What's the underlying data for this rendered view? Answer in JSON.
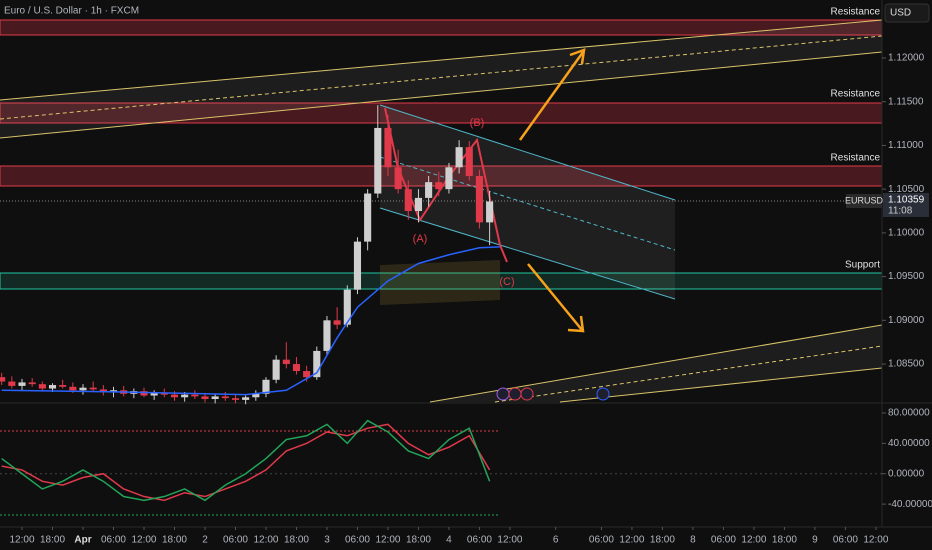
{
  "chart_data": [
    {
      "type": "candlestick",
      "title": "Euro / U.S. Dollar · 1h · FXCM",
      "currency": "USD",
      "symbol": "EURUSD",
      "countdown": "11:08",
      "annotations": [
        "Resistance",
        "Resistance",
        "Resistance",
        "Support",
        "(A)",
        "(B)",
        "(C)"
      ],
      "up_color": "#cfcfcf",
      "down_color": "#e0394a",
      "x": [
        -4,
        -2,
        0,
        2,
        4,
        6,
        8,
        10,
        12,
        14,
        16,
        18,
        20,
        22,
        24,
        26,
        28,
        30,
        32,
        34,
        36,
        38,
        40,
        42,
        44,
        46,
        48,
        50,
        52,
        54,
        56,
        58,
        60,
        62,
        64,
        66,
        68,
        70,
        72,
        74,
        76,
        78,
        80,
        82,
        84,
        86,
        88,
        90,
        92
      ],
      "open": [
        1.0835,
        1.083,
        1.0825,
        1.0829,
        1.0827,
        1.0822,
        1.0826,
        1.0824,
        1.082,
        1.0823,
        1.0821,
        1.0818,
        1.082,
        1.0816,
        1.0819,
        1.0814,
        1.0817,
        1.0815,
        1.0812,
        1.0815,
        1.0813,
        1.081,
        1.0813,
        1.0811,
        1.0809,
        1.0812,
        1.0816,
        1.0832,
        1.0855,
        1.085,
        1.0842,
        1.0835,
        1.0865,
        1.09,
        1.0895,
        1.0935,
        1.099,
        1.1045,
        1.112,
        1.1075,
        1.105,
        1.1025,
        1.104,
        1.1058,
        1.105,
        1.1075,
        1.1098,
        1.1065,
        1.1012
      ],
      "high": [
        1.084,
        1.0836,
        1.0833,
        1.0834,
        1.083,
        1.0828,
        1.0832,
        1.0829,
        1.0827,
        1.083,
        1.0826,
        1.0824,
        1.0825,
        1.0822,
        1.0823,
        1.082,
        1.0822,
        1.0819,
        1.0818,
        1.082,
        1.0817,
        1.0816,
        1.0818,
        1.0815,
        1.0814,
        1.082,
        1.0835,
        1.086,
        1.0875,
        1.0858,
        1.0848,
        1.087,
        1.0905,
        1.0915,
        1.094,
        1.0995,
        1.105,
        1.1146,
        1.1135,
        1.1095,
        1.106,
        1.105,
        1.1065,
        1.107,
        1.108,
        1.1106,
        1.1105,
        1.1072,
        1.1048
      ],
      "low": [
        1.0826,
        1.0822,
        1.082,
        1.0824,
        1.0819,
        1.0818,
        1.0822,
        1.0817,
        1.0815,
        1.0819,
        1.0814,
        1.0812,
        1.0813,
        1.0811,
        1.0812,
        1.0809,
        1.0812,
        1.0808,
        1.0807,
        1.081,
        1.0806,
        1.0805,
        1.0808,
        1.0805,
        1.0804,
        1.0808,
        1.0812,
        1.0828,
        1.0845,
        1.0838,
        1.083,
        1.0832,
        1.086,
        1.089,
        1.0892,
        1.093,
        1.098,
        1.104,
        1.1065,
        1.1045,
        1.1015,
        1.1012,
        1.103,
        1.1042,
        1.1045,
        1.1068,
        1.106,
        1.1005,
        1.0986
      ],
      "close": [
        1.083,
        1.0825,
        1.0829,
        1.0827,
        1.0822,
        1.0826,
        1.0824,
        1.082,
        1.0823,
        1.0821,
        1.0818,
        1.082,
        1.0816,
        1.0819,
        1.0814,
        1.0817,
        1.0815,
        1.0812,
        1.0815,
        1.0813,
        1.081,
        1.0813,
        1.0811,
        1.0809,
        1.0812,
        1.0816,
        1.0832,
        1.0855,
        1.085,
        1.0842,
        1.0835,
        1.0865,
        1.09,
        1.0895,
        1.0935,
        1.099,
        1.1045,
        1.112,
        1.1075,
        1.105,
        1.1025,
        1.104,
        1.1058,
        1.105,
        1.1075,
        1.1098,
        1.1065,
        1.1012,
        1.10359
      ],
      "overlays": [
        {
          "color": "#2962ff",
          "x": [
            -4,
            20,
            44,
            52,
            58,
            62,
            66,
            72,
            78,
            84,
            90,
            94
          ],
          "values": [
            1.082,
            1.0818,
            1.0815,
            1.082,
            1.084,
            1.088,
            1.0915,
            1.0945,
            1.0965,
            1.0975,
            1.0983,
            1.0984
          ]
        }
      ],
      "xlim": [
        -4.33,
        169.2
      ],
      "xticks": [
        {
          "value": 0,
          "label": "12:00"
        },
        {
          "value": 6,
          "label": "18:00"
        },
        {
          "value": 12,
          "label": "Apr"
        },
        {
          "value": 18,
          "label": "06:00"
        },
        {
          "value": 24,
          "label": "12:00"
        },
        {
          "value": 30,
          "label": "18:00"
        },
        {
          "value": 36,
          "label": "2"
        },
        {
          "value": 42,
          "label": "06:00"
        },
        {
          "value": 48,
          "label": "12:00"
        },
        {
          "value": 54,
          "label": "18:00"
        },
        {
          "value": 60,
          "label": "3"
        },
        {
          "value": 66,
          "label": "06:00"
        },
        {
          "value": 72,
          "label": "12:00"
        },
        {
          "value": 78,
          "label": "18:00"
        },
        {
          "value": 84,
          "label": "4"
        },
        {
          "value": 90,
          "label": "06:00"
        },
        {
          "value": 96,
          "label": "12:00"
        },
        {
          "value": 105,
          "label": "6"
        },
        {
          "value": 114,
          "label": "06:00"
        },
        {
          "value": 120,
          "label": "12:00"
        },
        {
          "value": 126,
          "label": "18:00"
        },
        {
          "value": 132,
          "label": "8"
        },
        {
          "value": 138,
          "label": "06:00"
        },
        {
          "value": 144,
          "label": "12:00"
        },
        {
          "value": 150,
          "label": "18:00"
        },
        {
          "value": 156,
          "label": "9"
        },
        {
          "value": 162,
          "label": "06:00"
        },
        {
          "value": 168,
          "label": "12:00"
        }
      ],
      "ylim": [
        1.08066,
        1.12663
      ],
      "yticks": [
        {
          "value": 1.12,
          "label": "1.12000"
        },
        {
          "value": 1.115,
          "label": "1.11500"
        },
        {
          "value": 1.11,
          "label": "1.11000"
        },
        {
          "value": 1.105,
          "label": "1.10500"
        },
        {
          "value": 1.1,
          "label": "1.10000"
        },
        {
          "value": 1.095,
          "label": "1.09500"
        },
        {
          "value": 1.09,
          "label": "1.09000"
        },
        {
          "value": 1.085,
          "label": "1.08500"
        }
      ]
    },
    {
      "type": "line",
      "x": [
        -4,
        0,
        4,
        8,
        12,
        16,
        20,
        24,
        28,
        32,
        36,
        40,
        44,
        48,
        52,
        56,
        60,
        64,
        68,
        72,
        76,
        80,
        84,
        88,
        92
      ],
      "series": [
        {
          "color": "#e0394a",
          "values": [
            10,
            5,
            -10,
            -15,
            -5,
            0,
            -20,
            -30,
            -35,
            -25,
            -30,
            -20,
            -10,
            5,
            30,
            40,
            55,
            50,
            60,
            65,
            40,
            25,
            35,
            50,
            5
          ]
        },
        {
          "color": "#22a559",
          "values": [
            20,
            0,
            -20,
            -10,
            5,
            -10,
            -30,
            -35,
            -30,
            -20,
            -35,
            -15,
            0,
            20,
            45,
            50,
            65,
            40,
            70,
            55,
            30,
            20,
            45,
            60,
            -10
          ]
        }
      ],
      "xlim": [
        -4.33,
        169.2
      ],
      "ylim": [
        -67.5,
        90.5
      ],
      "yticks": [
        {
          "value": 80,
          "label": "80.00000"
        },
        {
          "value": 40,
          "label": "40.00000"
        },
        {
          "value": 0,
          "label": "0.00000"
        },
        {
          "value": -40,
          "label": "-40.00000"
        }
      ]
    }
  ]
}
